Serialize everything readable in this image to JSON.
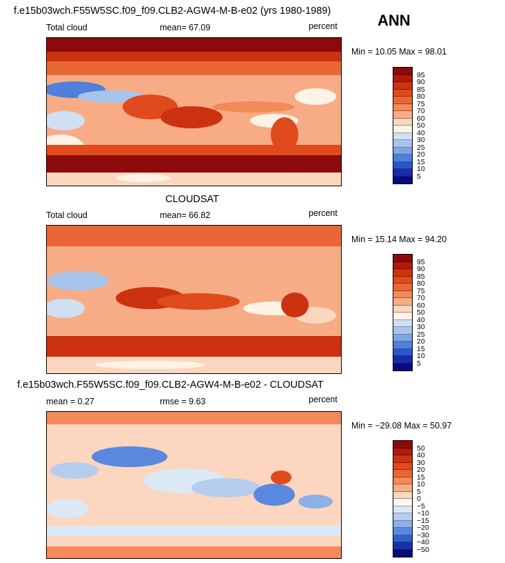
{
  "header": {
    "title1": "f.e15b03wch.F55W5SC.f09_f09.CLB2-AGW4-M-B-e02 (yrs 1980-1989)",
    "season": "ANN",
    "title2": "CLOUDSAT",
    "title3": "f.e15b03wch.F55W5SC.f09_f09.CLB2-AGW4-M-B-e02 - CLOUDSAT"
  },
  "panels": [
    {
      "left": "Total cloud",
      "mid": "mean=  67.09",
      "right": "percent",
      "minmax": "Min =   10.05 Max =   98.01"
    },
    {
      "left": "Total cloud",
      "mid": "mean=  66.82",
      "right": "percent",
      "minmax": "Min =   15.14 Max =   94.20"
    },
    {
      "left": "mean =    0.27",
      "mid": "rmse =    9.63",
      "right": "percent",
      "minmax": "Min = −29.08 Max =   50.97"
    }
  ],
  "chart_data": [
    {
      "type": "heatmap",
      "title": "f.e15b03wch.F55W5SC.f09_f09.CLB2-AGW4-M-B-e02 (yrs 1980-1989)",
      "variable": "Total cloud",
      "units": "percent",
      "mean": 67.09,
      "min": 10.05,
      "max": 98.01,
      "colorbar": {
        "levels": [
          "95",
          "90",
          "85",
          "80",
          "75",
          "70",
          "60",
          "50",
          "40",
          "30",
          "25",
          "20",
          "15",
          "10",
          "5"
        ],
        "colors": [
          "#8c0a0a",
          "#b01a0c",
          "#cc3210",
          "#e04a1c",
          "#eb6636",
          "#f4895a",
          "#f8ac86",
          "#fcd6bf",
          "#fff2e6",
          "#cfe0f4",
          "#a8c4ec",
          "#7ea6e4",
          "#4f80dc",
          "#2c55cc",
          "#1a2aa8",
          "#0a0a80"
        ]
      }
    },
    {
      "type": "heatmap",
      "title": "CLOUDSAT",
      "variable": "Total cloud",
      "units": "percent",
      "mean": 66.82,
      "min": 15.14,
      "max": 94.2,
      "colorbar": {
        "levels": [
          "95",
          "90",
          "85",
          "80",
          "75",
          "70",
          "60",
          "50",
          "40",
          "30",
          "25",
          "20",
          "15",
          "10",
          "5"
        ],
        "colors": [
          "#8c0a0a",
          "#b01a0c",
          "#cc3210",
          "#e04a1c",
          "#eb6636",
          "#f4895a",
          "#f8ac86",
          "#fcd6bf",
          "#fff2e6",
          "#cfe0f4",
          "#a8c4ec",
          "#7ea6e4",
          "#4f80dc",
          "#2c55cc",
          "#1a2aa8",
          "#0a0a80"
        ]
      }
    },
    {
      "type": "heatmap",
      "title": "f.e15b03wch.F55W5SC.f09_f09.CLB2-AGW4-M-B-e02 - CLOUDSAT",
      "variable": "difference",
      "units": "percent",
      "mean": 0.27,
      "rmse": 9.63,
      "min": -29.08,
      "max": 50.97,
      "colorbar": {
        "levels": [
          "50",
          "40",
          "30",
          "20",
          "15",
          "10",
          "5",
          "0",
          "−5",
          "−10",
          "−15",
          "−20",
          "−30",
          "−40",
          "−50"
        ],
        "colors": [
          "#8c0a0a",
          "#b01a0c",
          "#cc3210",
          "#e04a1c",
          "#eb6636",
          "#f4895a",
          "#f8ac86",
          "#fcd6bf",
          "#fff8f0",
          "#dbe8f6",
          "#b6cdef",
          "#8cb0e8",
          "#5a88de",
          "#3060cc",
          "#1a30a8",
          "#0a0a78"
        ]
      }
    }
  ]
}
